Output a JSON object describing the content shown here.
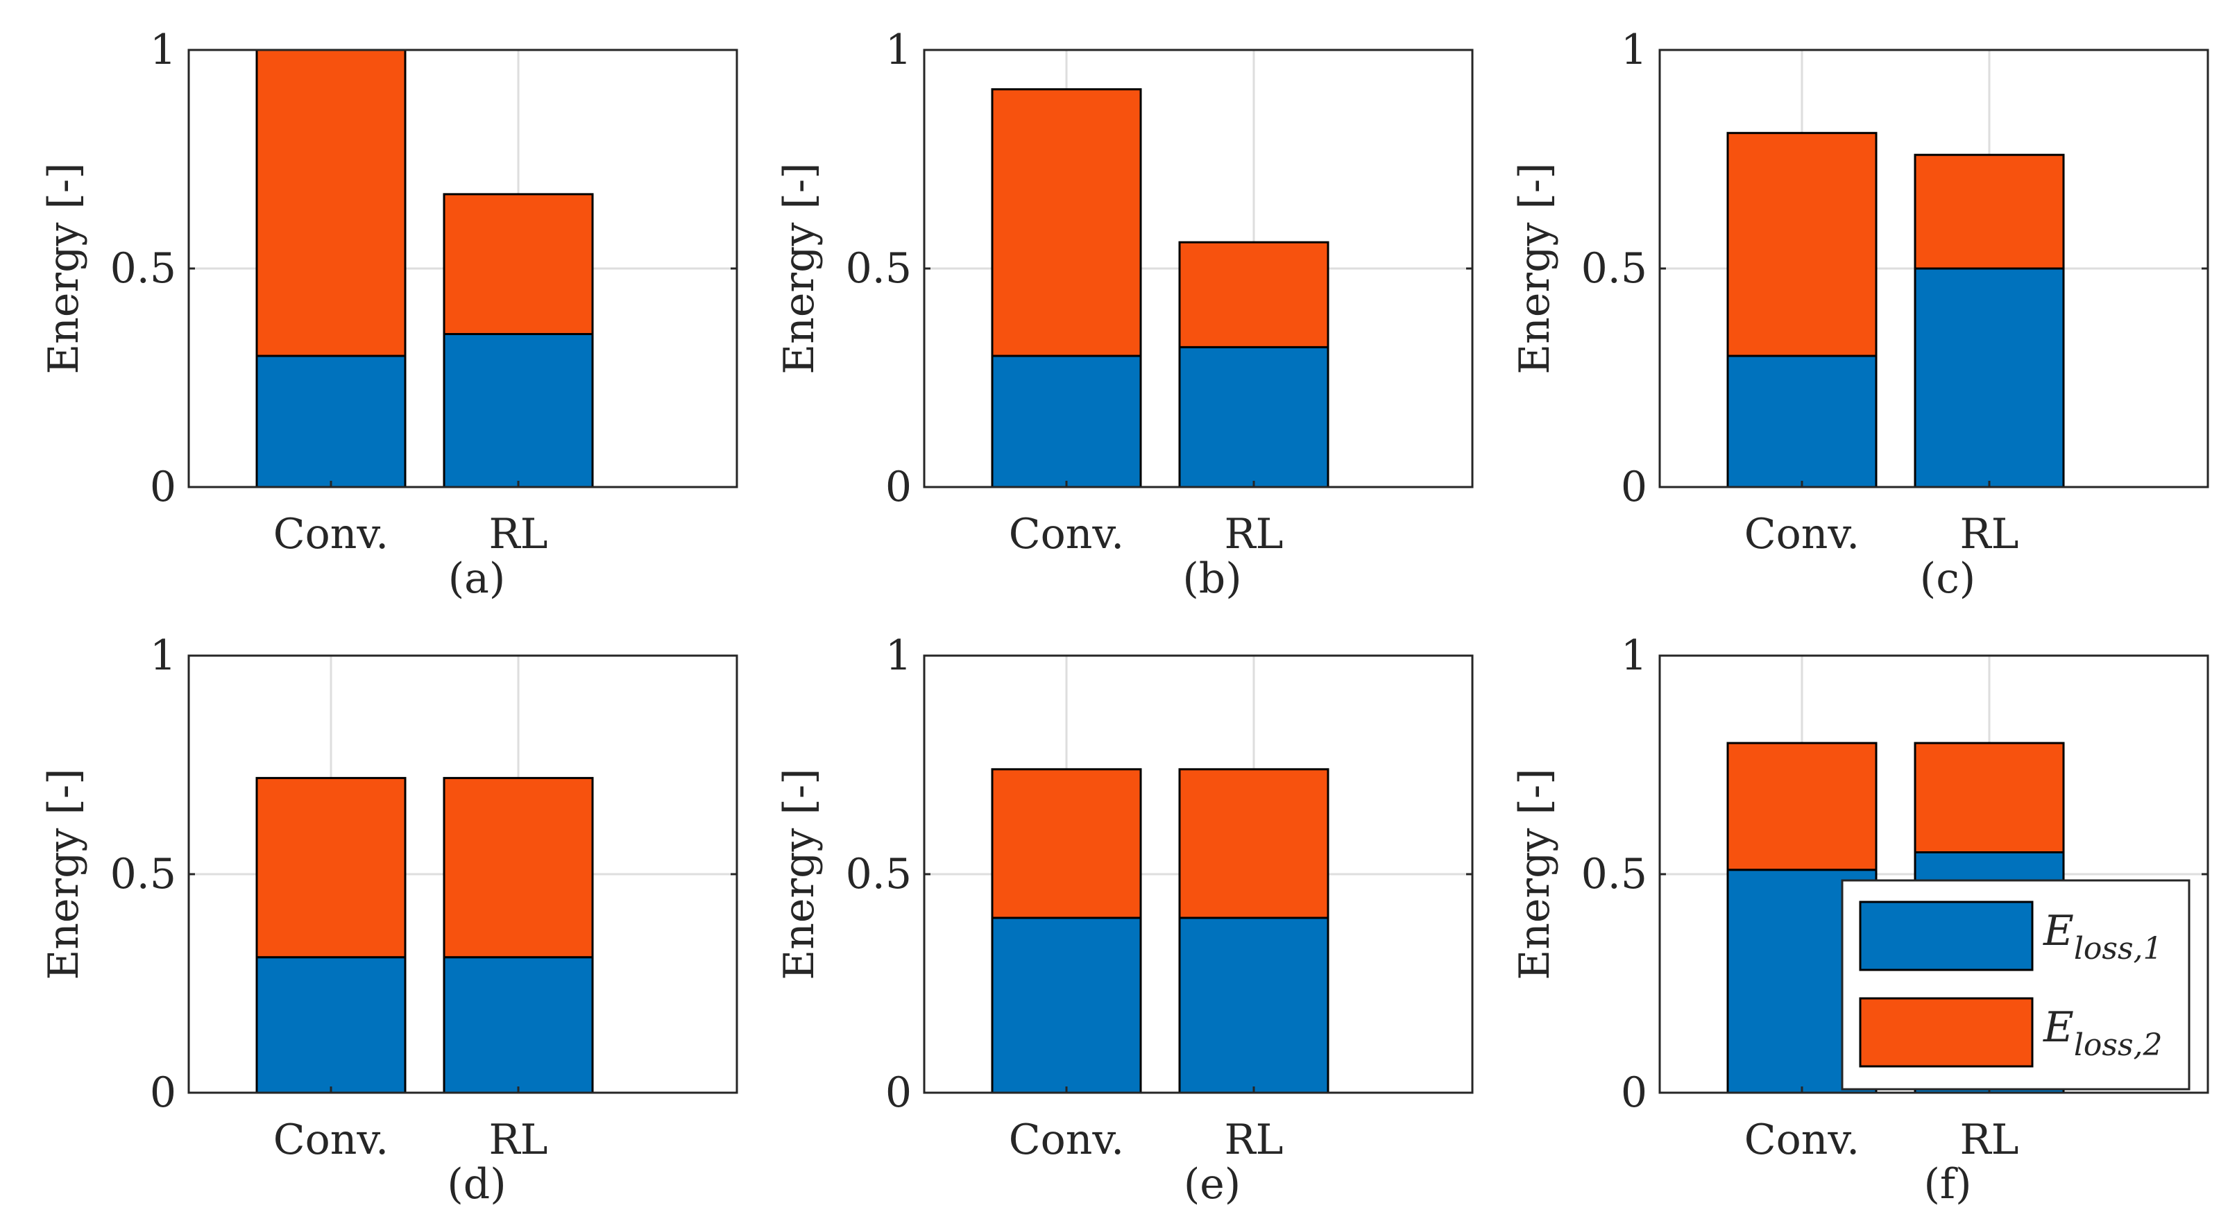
{
  "chart_data": [
    {
      "type": "bar",
      "stacked": true,
      "panel_label": "(a)",
      "categories": [
        "Conv.",
        "RL"
      ],
      "ylabel": "Energy [-]",
      "ylim": [
        0,
        1
      ],
      "yticks": [
        0,
        0.5,
        1
      ],
      "ytick_labels": [
        "0",
        "0.5",
        "1"
      ],
      "grid": true,
      "series": [
        {
          "name": "E_loss,1",
          "values": [
            0.3,
            0.35
          ]
        },
        {
          "name": "E_loss,2",
          "values": [
            0.7,
            0.32
          ]
        }
      ]
    },
    {
      "type": "bar",
      "stacked": true,
      "panel_label": "(b)",
      "categories": [
        "Conv.",
        "RL"
      ],
      "ylabel": "Energy [-]",
      "ylim": [
        0,
        1
      ],
      "yticks": [
        0,
        0.5,
        1
      ],
      "ytick_labels": [
        "0",
        "0.5",
        "1"
      ],
      "grid": true,
      "series": [
        {
          "name": "E_loss,1",
          "values": [
            0.3,
            0.32
          ]
        },
        {
          "name": "E_loss,2",
          "values": [
            0.61,
            0.24
          ]
        }
      ]
    },
    {
      "type": "bar",
      "stacked": true,
      "panel_label": "(c)",
      "categories": [
        "Conv.",
        "RL"
      ],
      "ylabel": "Energy [-]",
      "ylim": [
        0,
        1
      ],
      "yticks": [
        0,
        0.5,
        1
      ],
      "ytick_labels": [
        "0",
        "0.5",
        "1"
      ],
      "grid": true,
      "series": [
        {
          "name": "E_loss,1",
          "values": [
            0.3,
            0.5
          ]
        },
        {
          "name": "E_loss,2",
          "values": [
            0.51,
            0.26
          ]
        }
      ]
    },
    {
      "type": "bar",
      "stacked": true,
      "panel_label": "(d)",
      "categories": [
        "Conv.",
        "RL"
      ],
      "ylabel": "Energy [-]",
      "ylim": [
        0,
        1
      ],
      "yticks": [
        0,
        0.5,
        1
      ],
      "ytick_labels": [
        "0",
        "0.5",
        "1"
      ],
      "grid": true,
      "series": [
        {
          "name": "E_loss,1",
          "values": [
            0.31,
            0.31
          ]
        },
        {
          "name": "E_loss,2",
          "values": [
            0.41,
            0.41
          ]
        }
      ]
    },
    {
      "type": "bar",
      "stacked": true,
      "panel_label": "(e)",
      "categories": [
        "Conv.",
        "RL"
      ],
      "ylabel": "Energy [-]",
      "ylim": [
        0,
        1
      ],
      "yticks": [
        0,
        0.5,
        1
      ],
      "ytick_labels": [
        "0",
        "0.5",
        "1"
      ],
      "grid": true,
      "series": [
        {
          "name": "E_loss,1",
          "values": [
            0.4,
            0.4
          ]
        },
        {
          "name": "E_loss,2",
          "values": [
            0.34,
            0.34
          ]
        }
      ]
    },
    {
      "type": "bar",
      "stacked": true,
      "panel_label": "(f)",
      "categories": [
        "Conv.",
        "RL"
      ],
      "ylabel": "Energy [-]",
      "ylim": [
        0,
        1
      ],
      "yticks": [
        0,
        0.5,
        1
      ],
      "ytick_labels": [
        "0",
        "0.5",
        "1"
      ],
      "grid": true,
      "legend": "bottom-right",
      "series": [
        {
          "name": "E_loss,1",
          "values": [
            0.51,
            0.55
          ]
        },
        {
          "name": "E_loss,2",
          "values": [
            0.29,
            0.25
          ]
        }
      ]
    }
  ],
  "legend": {
    "items": [
      {
        "symbol": "E",
        "subscript": "loss,1"
      },
      {
        "symbol": "E",
        "subscript": "loss,2"
      }
    ]
  },
  "colors": {
    "series1": "#0072BD",
    "series2": "#F7520E",
    "grid": "#dedede",
    "axis": "#262626"
  }
}
